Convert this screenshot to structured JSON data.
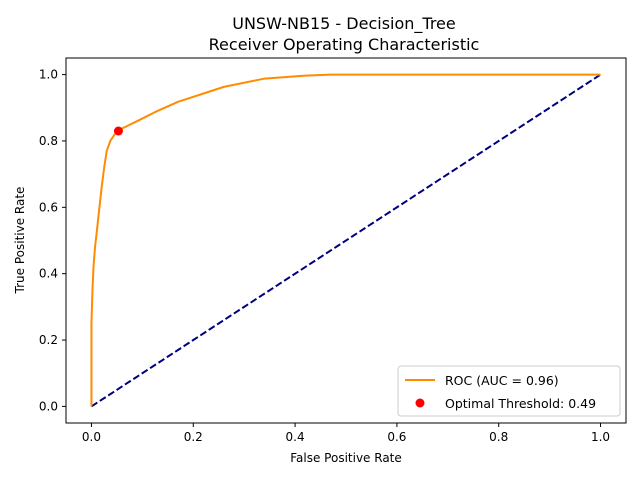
{
  "chart_data": {
    "type": "line",
    "title": "UNSW-NB15 - Decision_Tree",
    "subtitle": "Receiver Operating Characteristic",
    "xlabel": "False Positive Rate",
    "ylabel": "True Positive Rate",
    "xlim": [
      -0.05,
      1.05
    ],
    "ylim": [
      -0.05,
      1.05
    ],
    "x_ticks": [
      "0.0",
      "0.2",
      "0.4",
      "0.6",
      "0.8",
      "1.0"
    ],
    "y_ticks": [
      "0.0",
      "0.2",
      "0.4",
      "0.6",
      "0.8",
      "1.0"
    ],
    "grid": false,
    "legend_position": "bottom-right",
    "series": [
      {
        "name": "ROC (AUC = 0.96)",
        "style": "solid",
        "color": "#ff8c00",
        "x": [
          0.0,
          0.0,
          0.0,
          0.002,
          0.004,
          0.007,
          0.01,
          0.015,
          0.02,
          0.025,
          0.03,
          0.037,
          0.05,
          0.09,
          0.125,
          0.17,
          0.26,
          0.34,
          0.42,
          0.47,
          1.0
        ],
        "y": [
          0.0,
          0.2,
          0.25,
          0.35,
          0.42,
          0.48,
          0.52,
          0.59,
          0.66,
          0.72,
          0.77,
          0.8,
          0.83,
          0.86,
          0.887,
          0.918,
          0.963,
          0.988,
          0.997,
          1.0,
          1.0
        ]
      },
      {
        "name": "",
        "style": "dashed",
        "color": "#000080",
        "x": [
          0.0,
          1.0
        ],
        "y": [
          0.0,
          1.0
        ]
      }
    ],
    "points": [
      {
        "name": "Optimal Threshold: 0.49",
        "color": "#ff0000",
        "x": 0.053,
        "y": 0.83
      }
    ]
  }
}
